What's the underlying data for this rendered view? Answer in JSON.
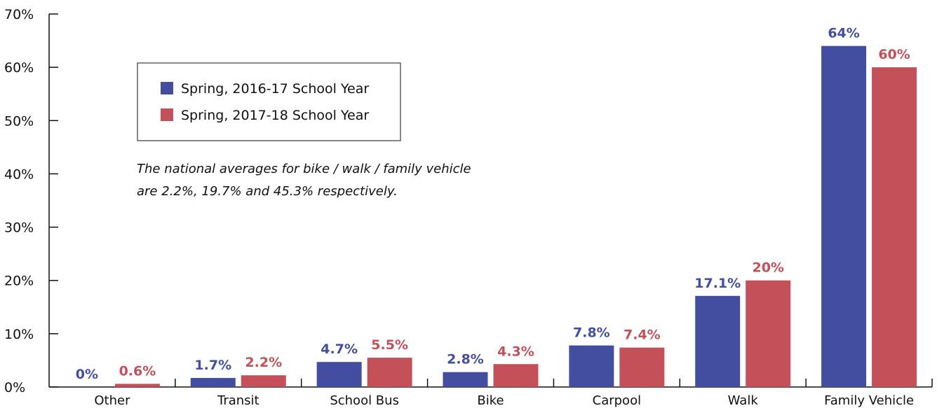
{
  "chart_data": {
    "type": "bar",
    "categories": [
      "Other",
      "Transit",
      "School Bus",
      "Bike",
      "Carpool",
      "Walk",
      "Family Vehicle"
    ],
    "series": [
      {
        "name": "Spring, 2016-17 School Year",
        "color": "#434ea1",
        "values": [
          0,
          1.7,
          4.7,
          2.8,
          7.8,
          17.1,
          64
        ],
        "labels": [
          "0%",
          "1.7%",
          "4.7%",
          "2.8%",
          "7.8%",
          "17.1%",
          "64%"
        ]
      },
      {
        "name": "Spring, 2017-18 School Year",
        "color": "#c4505a",
        "values": [
          0.6,
          2.2,
          5.5,
          4.3,
          7.4,
          20,
          60
        ],
        "labels": [
          "0.6%",
          "2.2%",
          "5.5%",
          "4.3%",
          "7.4%",
          "20%",
          "60%"
        ]
      }
    ],
    "yticks": [
      "0%",
      "10%",
      "20%",
      "30%",
      "40%",
      "50%",
      "60%",
      "70%"
    ],
    "ylim": [
      0,
      70
    ],
    "legend": "top-left",
    "grid": false,
    "annotation": [
      "The national averages for bike / walk / family vehicle",
      "are 2.2%, 19.7% and 45.3% respectively."
    ]
  }
}
